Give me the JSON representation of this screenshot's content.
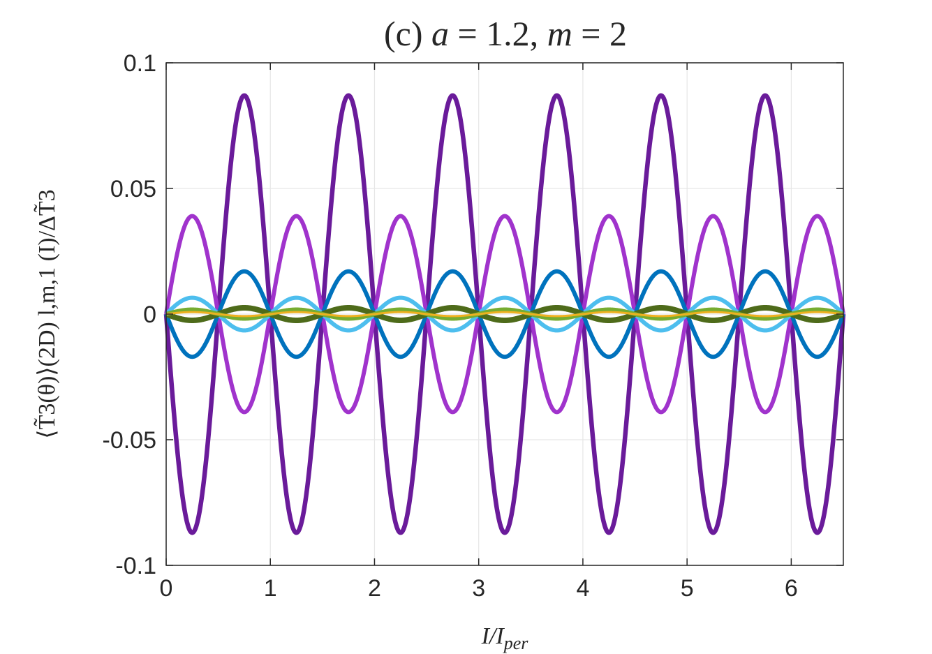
{
  "chart_data": {
    "type": "line",
    "title": "(c) a = 1.2, m = 2",
    "xlabel": "I/I_per",
    "ylabel": "⟨T̃3(θ)⟩(2D) l,m,1 (I)/ΔT̃3",
    "xlim": [
      0,
      6.5
    ],
    "ylim": [
      -0.1,
      0.1
    ],
    "xticks": [
      0,
      1,
      2,
      3,
      4,
      5,
      6
    ],
    "xtick_labels": [
      "0",
      "1",
      "2",
      "3",
      "4",
      "5",
      "6"
    ],
    "yticks": [
      -0.1,
      -0.05,
      0,
      0.05,
      0.1
    ],
    "ytick_labels": [
      "-0.1",
      "-0.05",
      "0",
      "0.05",
      "0.1"
    ],
    "grid": true,
    "legend": "none",
    "function": "y = amplitude * sin(2*pi*frequency*x + phase)",
    "series": [
      {
        "amplitude": -0.087,
        "frequency": 1,
        "phase": 0,
        "color": "#6a1b9a",
        "width": 6.5
      },
      {
        "amplitude": 0.039,
        "frequency": 1,
        "phase": 0,
        "color": "#a033cc",
        "width": 6
      },
      {
        "amplitude": -0.017,
        "frequency": 1,
        "phase": 0,
        "color": "#0072bd",
        "width": 6
      },
      {
        "amplitude": 0.0065,
        "frequency": 1,
        "phase": 0,
        "color": "#4dbeee",
        "width": 6
      },
      {
        "amplitude": -0.0025,
        "frequency": 1,
        "phase": 0,
        "color": "#4e6b1a",
        "width": 8
      },
      {
        "amplitude": 0.0018,
        "frequency": 1,
        "phase": 0,
        "color": "#77ac30",
        "width": 6
      },
      {
        "amplitude": 0.0008,
        "frequency": 1,
        "phase": 0,
        "color": "#edb120",
        "width": 3
      }
    ]
  }
}
